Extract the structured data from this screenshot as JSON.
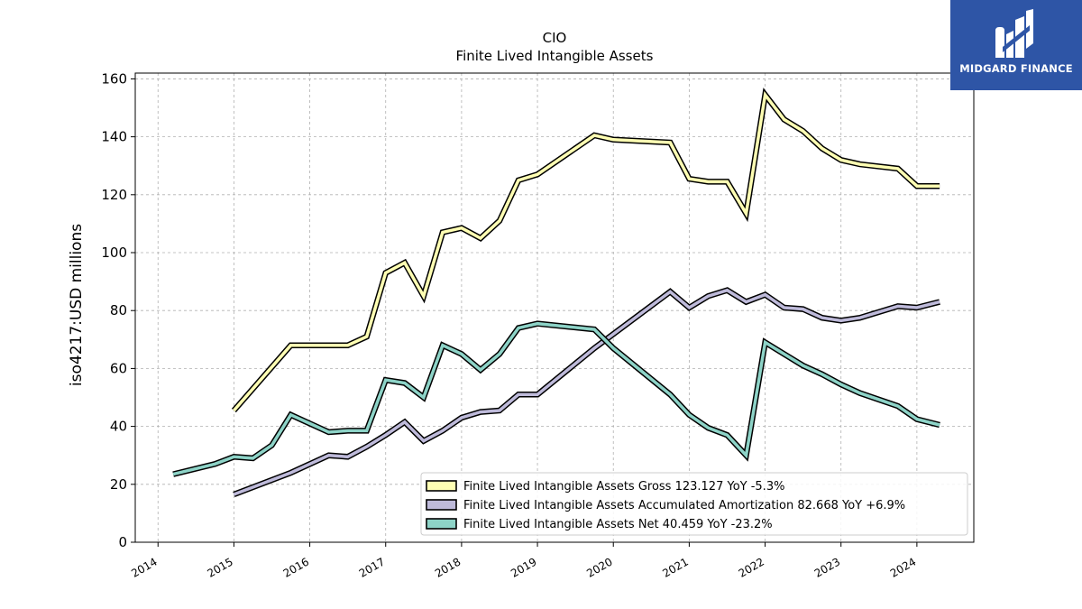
{
  "chart_data": {
    "type": "line",
    "title": "CIO",
    "subtitle": "Finite Lived Intangible Assets",
    "ylabel": "iso4217:USD  millions",
    "xlabel": "",
    "xlim": [
      2013.7,
      2024.75
    ],
    "ylim": [
      0,
      162
    ],
    "yticks": [
      0,
      20,
      40,
      60,
      80,
      100,
      120,
      140,
      160
    ],
    "xticks": [
      "2014",
      "2015",
      "2016",
      "2017",
      "2018",
      "2019",
      "2020",
      "2021",
      "2022",
      "2023",
      "2024"
    ],
    "grid": true,
    "legend_position": "lower-right",
    "series": [
      {
        "name": "Finite Lived Intangible Assets Gross",
        "legend": "Finite Lived Intangible Assets Gross  123.127 YoY -5.3%",
        "color": "#ffffb3",
        "points": [
          [
            2015.0,
            45.5
          ],
          [
            2015.75,
            68
          ],
          [
            2016.5,
            68
          ],
          [
            2016.75,
            71
          ],
          [
            2017.0,
            93
          ],
          [
            2017.25,
            96.5
          ],
          [
            2017.5,
            85
          ],
          [
            2017.75,
            107
          ],
          [
            2018.0,
            108.5
          ],
          [
            2018.25,
            105
          ],
          [
            2018.5,
            111
          ],
          [
            2018.75,
            125
          ],
          [
            2019.0,
            127
          ],
          [
            2019.75,
            140.5
          ],
          [
            2020.0,
            139
          ],
          [
            2020.75,
            138
          ],
          [
            2021.0,
            125.5
          ],
          [
            2021.25,
            124.5
          ],
          [
            2021.5,
            124.5
          ],
          [
            2021.75,
            113.5
          ],
          [
            2022.0,
            154.5
          ],
          [
            2022.25,
            146
          ],
          [
            2022.5,
            142
          ],
          [
            2022.75,
            136
          ],
          [
            2023.0,
            132
          ],
          [
            2023.25,
            130.5
          ],
          [
            2023.75,
            129
          ],
          [
            2024.0,
            123
          ],
          [
            2024.3,
            123
          ]
        ]
      },
      {
        "name": "Finite Lived Intangible Assets Accumulated Amortization",
        "legend": "Finite Lived Intangible Assets Accumulated Amortization  82.668 YoY +6.9%",
        "color": "#bebada",
        "points": [
          [
            2015.0,
            16.5
          ],
          [
            2015.75,
            24
          ],
          [
            2016.25,
            30
          ],
          [
            2016.5,
            29.5
          ],
          [
            2016.75,
            33
          ],
          [
            2017.0,
            37
          ],
          [
            2017.25,
            41.5
          ],
          [
            2017.5,
            35
          ],
          [
            2017.75,
            38.5
          ],
          [
            2018.0,
            43
          ],
          [
            2018.25,
            45
          ],
          [
            2018.5,
            45.5
          ],
          [
            2018.75,
            51
          ],
          [
            2019.0,
            51
          ],
          [
            2019.75,
            67
          ],
          [
            2020.75,
            86.5
          ],
          [
            2021.0,
            81
          ],
          [
            2021.25,
            85
          ],
          [
            2021.5,
            87
          ],
          [
            2021.75,
            83
          ],
          [
            2022.0,
            85.5
          ],
          [
            2022.25,
            81
          ],
          [
            2022.5,
            80.5
          ],
          [
            2022.75,
            77.5
          ],
          [
            2023.0,
            76.5
          ],
          [
            2023.25,
            77.5
          ],
          [
            2023.75,
            81.5
          ],
          [
            2024.0,
            81
          ],
          [
            2024.3,
            83
          ]
        ]
      },
      {
        "name": "Finite Lived Intangible Assets Net",
        "legend": "Finite Lived Intangible Assets Net  40.459 YoY -23.2%",
        "color": "#8dd3c7",
        "points": [
          [
            2014.2,
            23.5
          ],
          [
            2014.75,
            27
          ],
          [
            2015.0,
            29.5
          ],
          [
            2015.25,
            29
          ],
          [
            2015.5,
            33.5
          ],
          [
            2015.75,
            44
          ],
          [
            2016.0,
            41
          ],
          [
            2016.25,
            38
          ],
          [
            2016.5,
            38.5
          ],
          [
            2016.75,
            38.5
          ],
          [
            2017.0,
            56
          ],
          [
            2017.25,
            55
          ],
          [
            2017.5,
            50
          ],
          [
            2017.75,
            68
          ],
          [
            2018.0,
            65
          ],
          [
            2018.25,
            59.5
          ],
          [
            2018.5,
            65
          ],
          [
            2018.75,
            74
          ],
          [
            2019.0,
            75.5
          ],
          [
            2019.75,
            73.5
          ],
          [
            2020.0,
            67
          ],
          [
            2020.75,
            51
          ],
          [
            2021.0,
            44
          ],
          [
            2021.25,
            39.5
          ],
          [
            2021.5,
            37
          ],
          [
            2021.75,
            30
          ],
          [
            2022.0,
            69
          ],
          [
            2022.25,
            65
          ],
          [
            2022.5,
            61
          ],
          [
            2022.75,
            58
          ],
          [
            2023.0,
            54.5
          ],
          [
            2023.25,
            51.5
          ],
          [
            2023.75,
            47
          ],
          [
            2024.0,
            42.5
          ],
          [
            2024.3,
            40.5
          ]
        ]
      }
    ]
  },
  "logo": {
    "text": "MIDGARD FINANCE",
    "background": "#2e55a6"
  }
}
